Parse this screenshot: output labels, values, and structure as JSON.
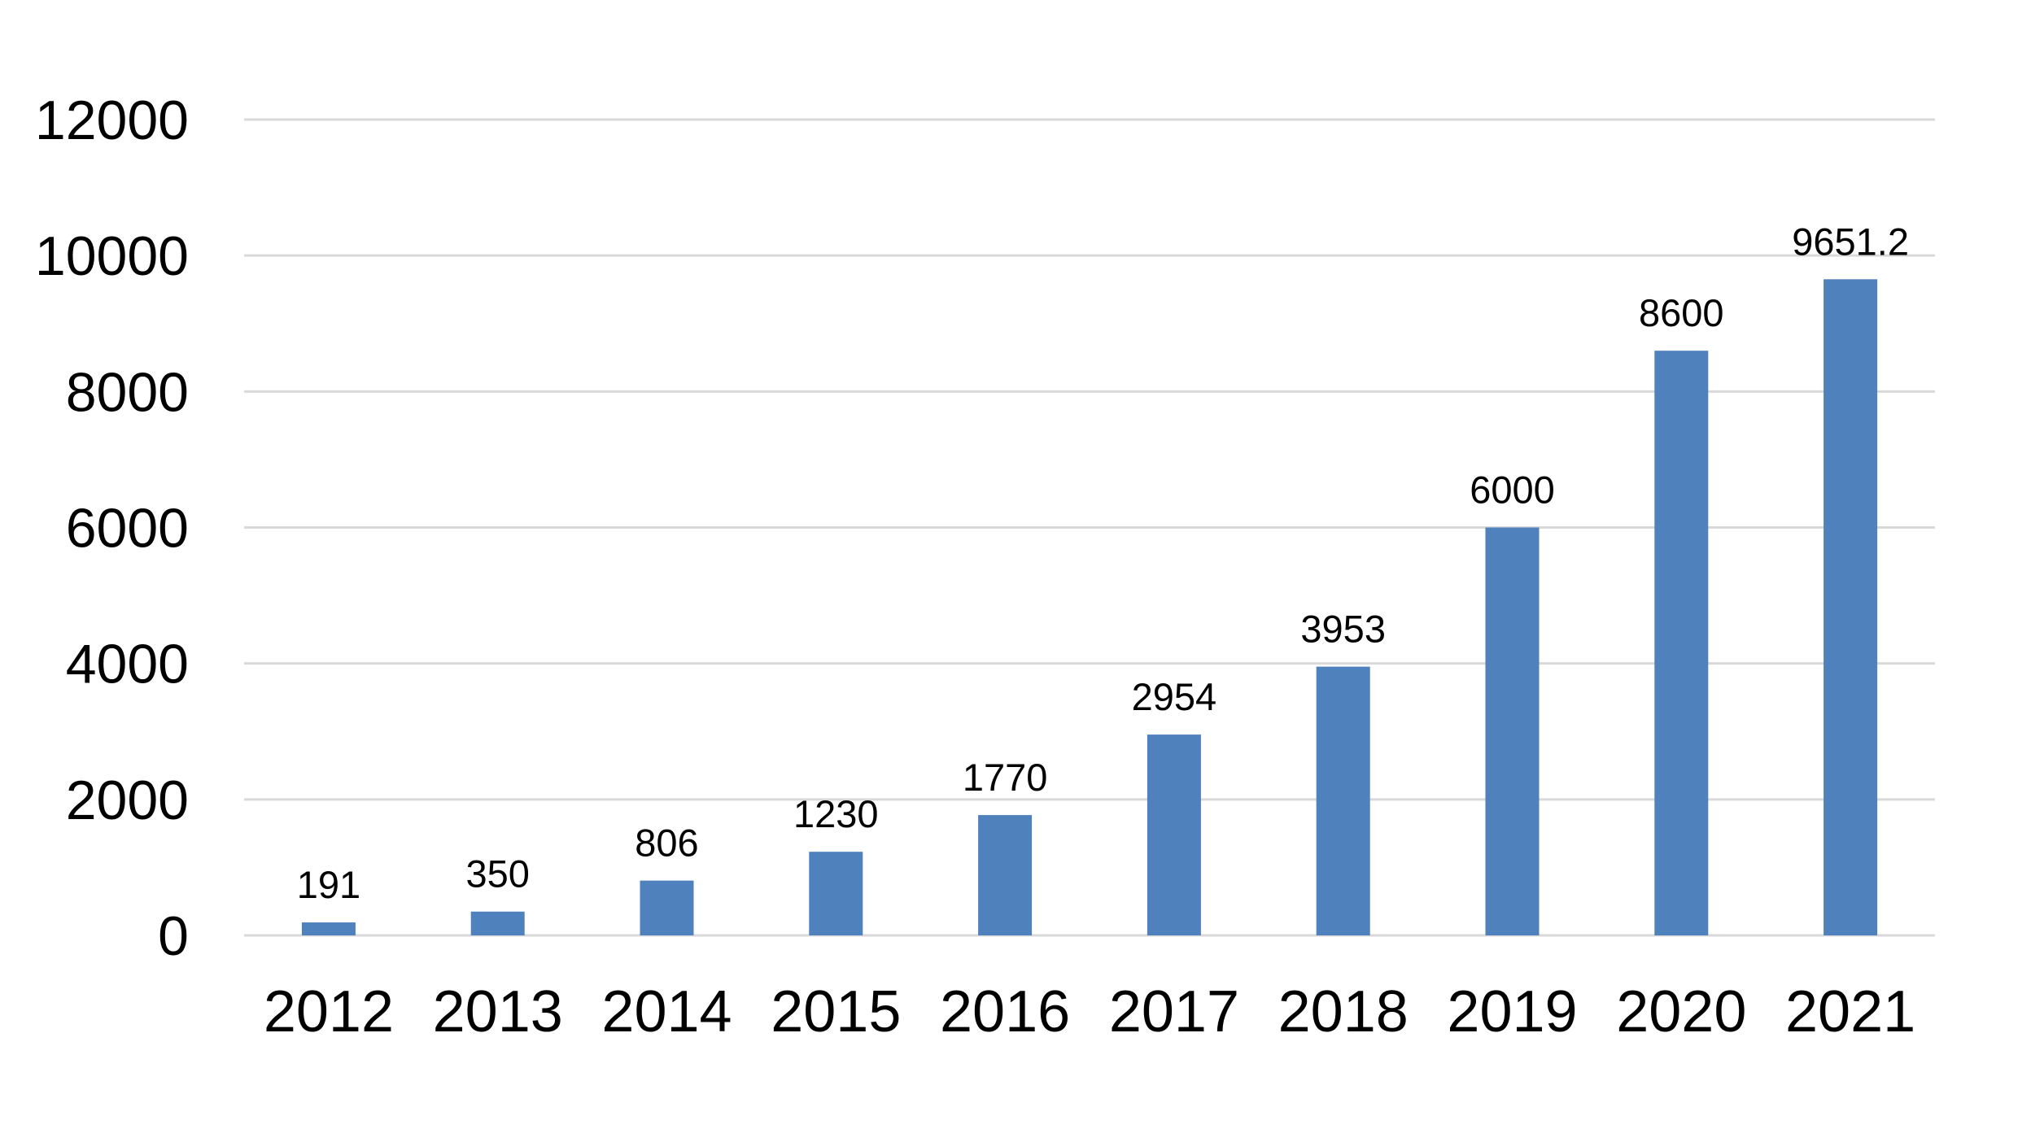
{
  "chart_data": {
    "type": "bar",
    "title": "",
    "xlabel": "",
    "ylabel": "",
    "categories": [
      "2012",
      "2013",
      "2014",
      "2015",
      "2016",
      "2017",
      "2018",
      "2019",
      "2020",
      "2021"
    ],
    "values": [
      191,
      350,
      806,
      1230,
      1770,
      2954,
      3953,
      6000,
      8600,
      9651.2
    ],
    "data_labels": [
      "191",
      "350",
      "806",
      "1230",
      "1770",
      "2954",
      "3953",
      "6000",
      "8600",
      "9651.2"
    ],
    "ylim": [
      0,
      12000
    ],
    "yticks": [
      0,
      2000,
      4000,
      6000,
      8000,
      10000,
      12000
    ],
    "ytick_labels": [
      "0",
      "2000",
      "4000",
      "6000",
      "8000",
      "10000",
      "12000"
    ],
    "grid": true,
    "legend": "none",
    "bar_color": "#4f81bd",
    "grid_color": "#d9d9d9"
  }
}
